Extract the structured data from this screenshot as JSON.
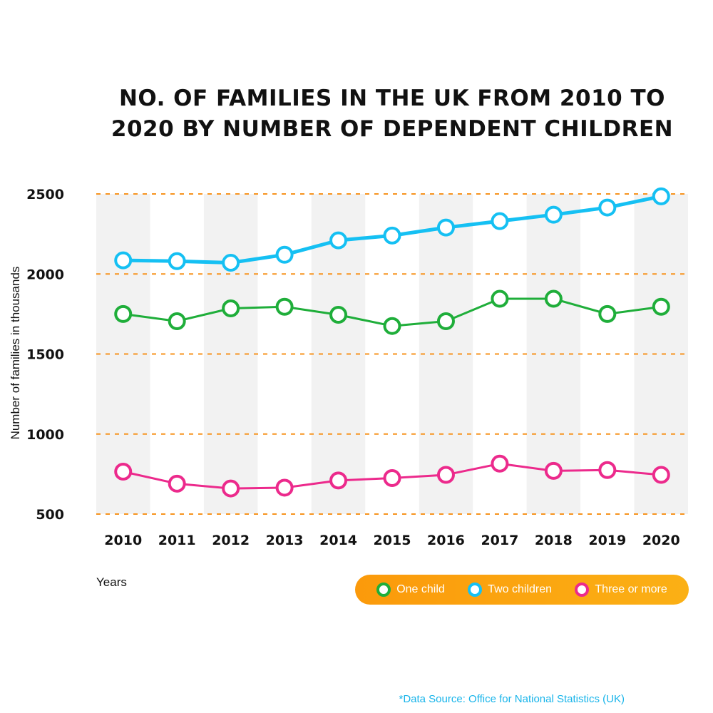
{
  "title_line1": "NO. OF FAMILIES IN THE UK FROM 2010 TO",
  "title_line2": "2020 BY NUMBER OF DEPENDENT CHILDREN",
  "source": "*Data Source: Office for National Statistics (UK)",
  "colors": {
    "one_child": "#1fae3a",
    "two_children": "#15c0f3",
    "three_or_more": "#ec2a8c",
    "gridline": "#f7931e",
    "band": "#f2f2f2",
    "legend_bg": "#fba311"
  },
  "chart_data": {
    "type": "line",
    "xlabel": "Years",
    "ylabel": "Number of families in thousands",
    "ylim": [
      500,
      2500
    ],
    "yticks": [
      2500,
      2000,
      1500,
      1000,
      500
    ],
    "grid": true,
    "legend": "bottom-right",
    "categories": [
      "2010",
      "2011",
      "2012",
      "2013",
      "2014",
      "2015",
      "2016",
      "2017",
      "2018",
      "2019",
      "2020"
    ],
    "series": [
      {
        "name": "One child",
        "color": "#1fae3a",
        "values": [
          1750,
          1705,
          1785,
          1795,
          1745,
          1675,
          1705,
          1845,
          1845,
          1750,
          1795
        ]
      },
      {
        "name": "Two children",
        "color": "#15c0f3",
        "values": [
          2085,
          2080,
          2070,
          2120,
          2210,
          2240,
          2290,
          2330,
          2370,
          2415,
          2485
        ]
      },
      {
        "name": "Three or more",
        "color": "#ec2a8c",
        "values": [
          765,
          690,
          660,
          665,
          710,
          725,
          745,
          815,
          770,
          775,
          745
        ]
      }
    ]
  }
}
